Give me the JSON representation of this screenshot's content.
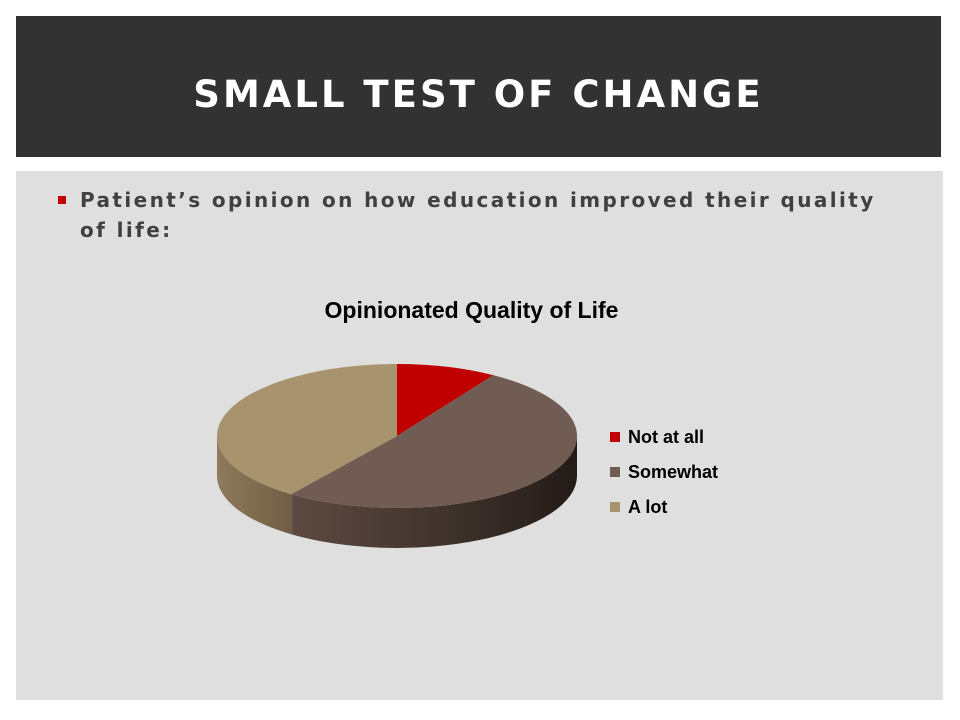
{
  "slide": {
    "title": "SMALL TEST OF CHANGE",
    "bullet": "Patient’s opinion on how education improved their quality of life:"
  },
  "colors": {
    "header_band": "#323232",
    "content_background": "#dfdfdf",
    "bullet_marker": "#c00000"
  },
  "chart_data": {
    "type": "pie",
    "style": "3d",
    "title": "Opinionated Quality of Life",
    "categories": [
      "Not at all",
      "Somewhat",
      "A lot"
    ],
    "values": [
      9,
      51,
      40
    ],
    "colors": [
      "#c00000",
      "#705c52",
      "#a8936f"
    ],
    "legend": "right"
  }
}
